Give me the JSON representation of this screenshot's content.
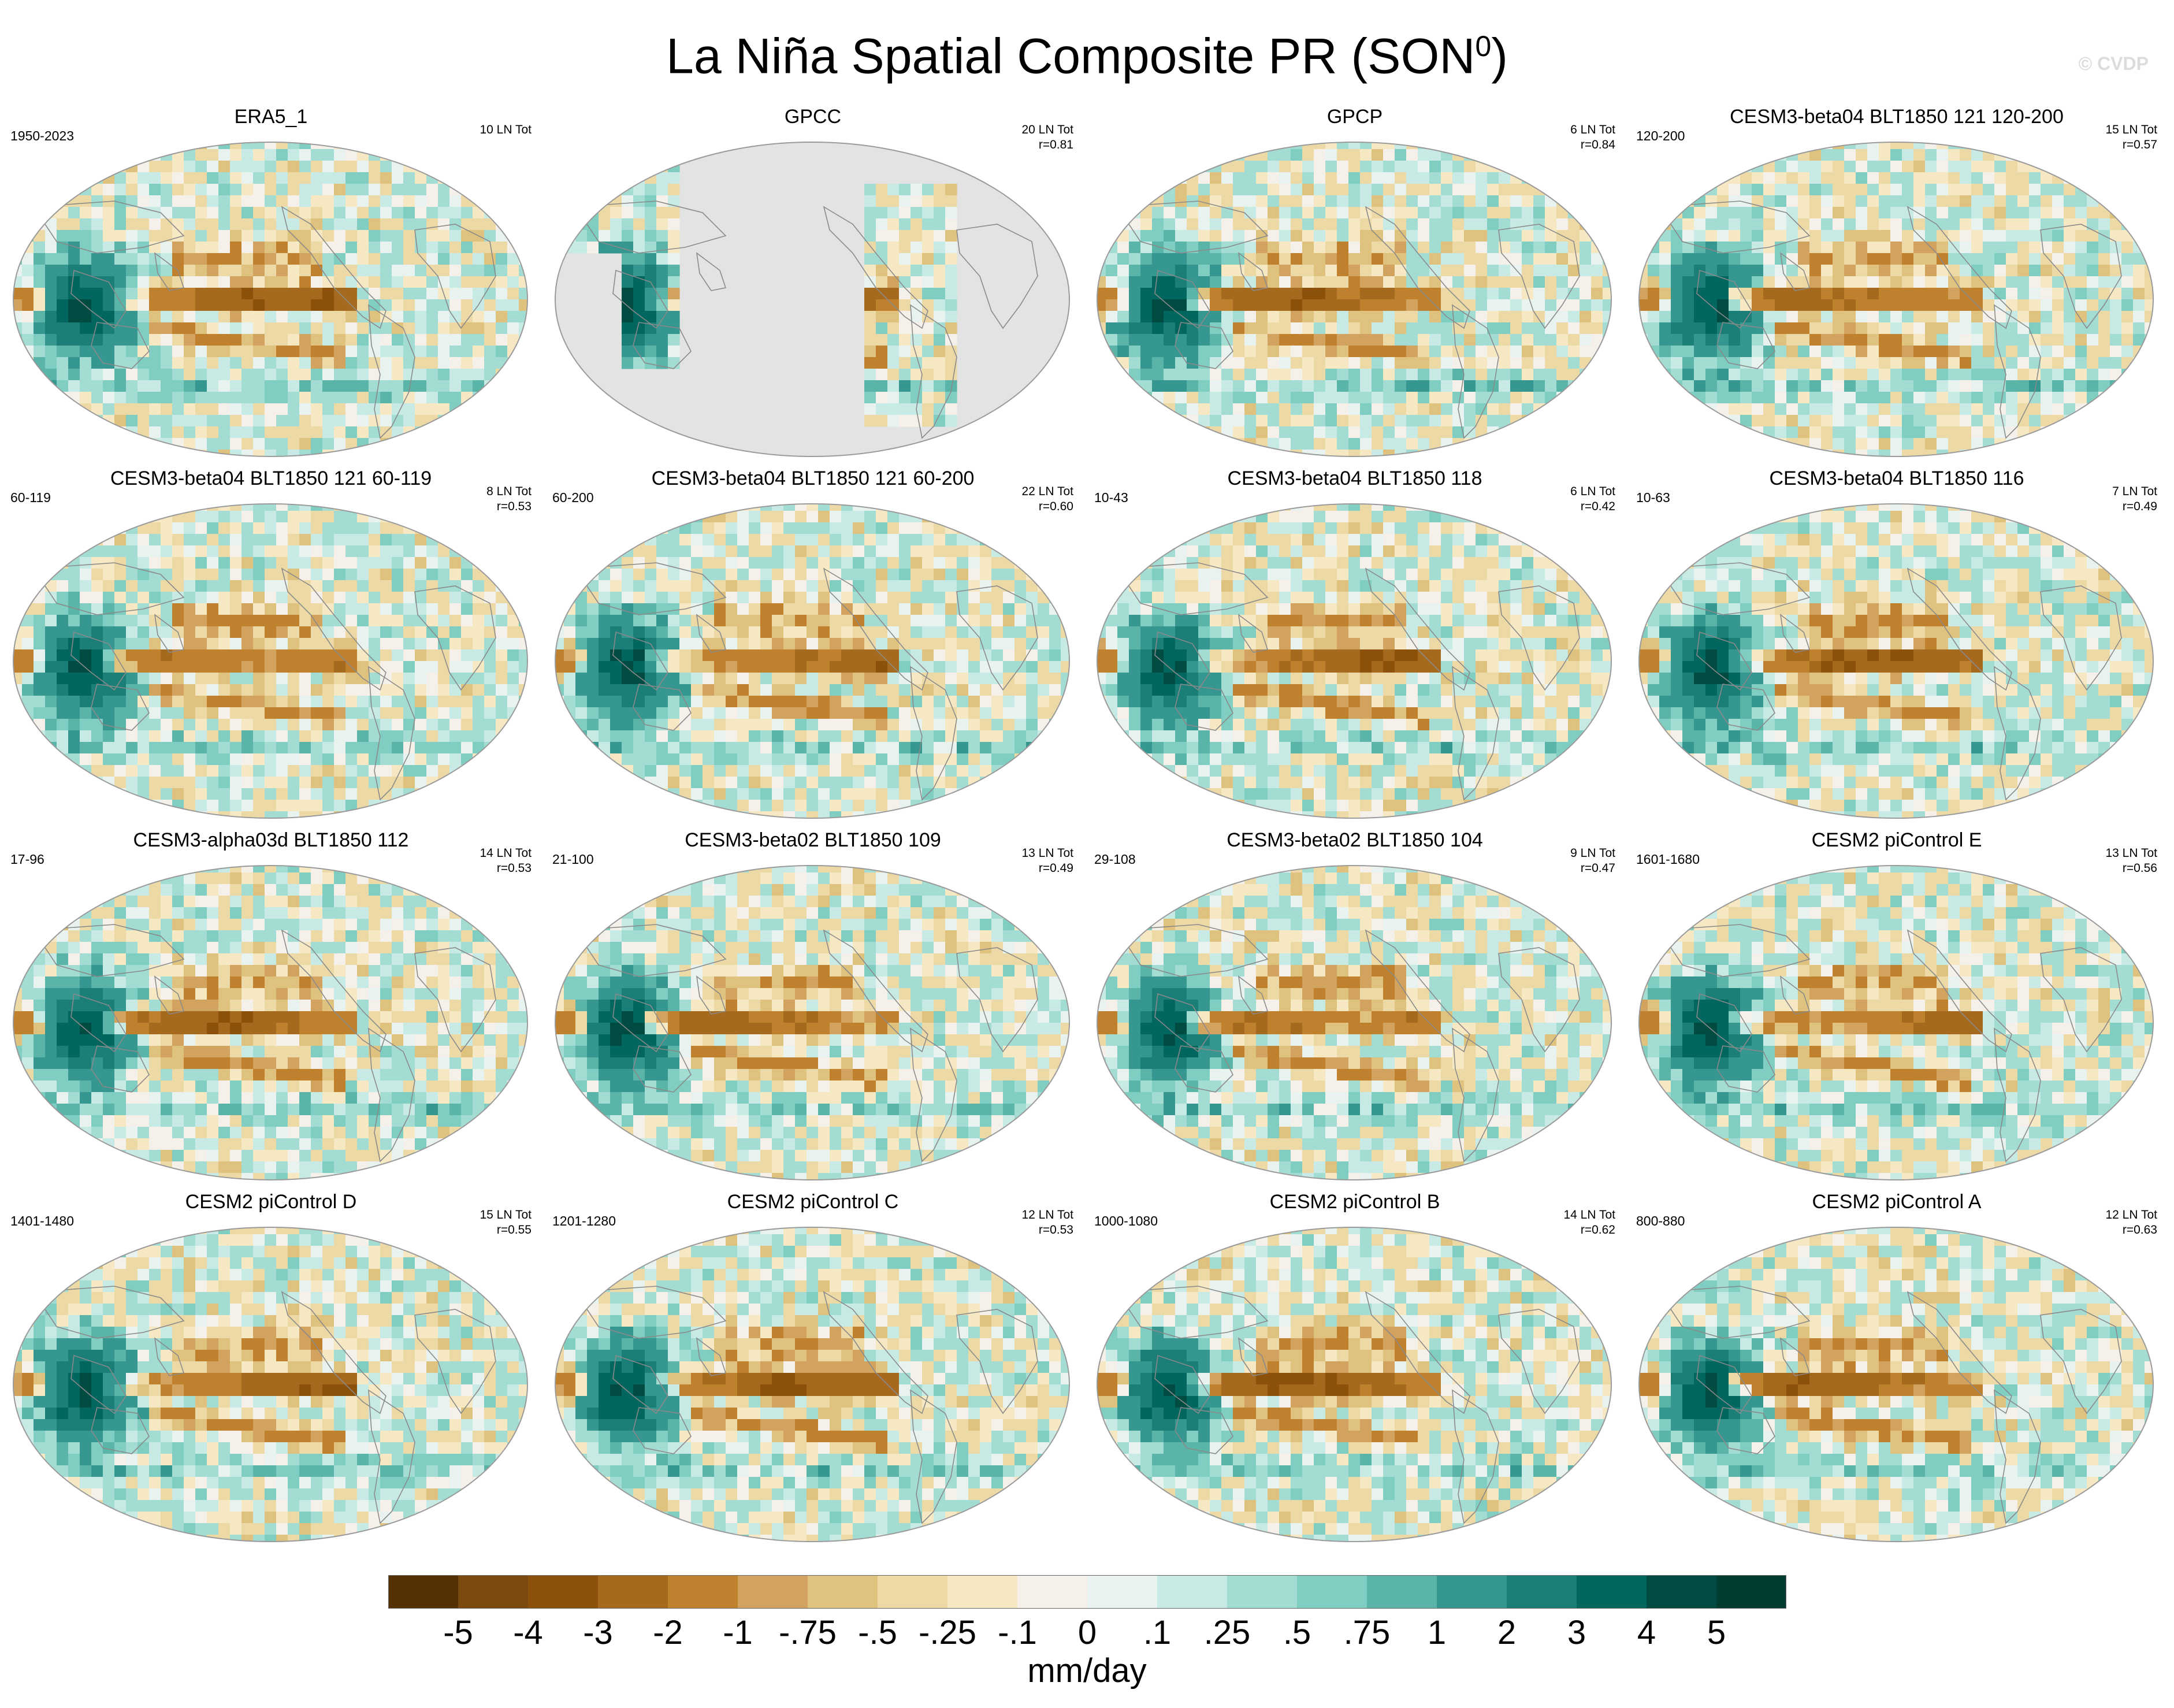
{
  "chart_data": {
    "type": "heatmap",
    "title": "La Niña Spatial Composite PR (SON",
    "title_superscript": "0",
    "title_suffix": ")",
    "watermark": "© CVDP",
    "units": "mm/day",
    "colorbar": {
      "labels": [
        "-5",
        "-4",
        "-3",
        "-2",
        "-1",
        "-.75",
        "-.5",
        "-.25",
        "-.1",
        "0",
        ".1",
        ".25",
        ".5",
        ".75",
        "1",
        "2",
        "3",
        "4",
        "5"
      ],
      "colors": [
        "#543005",
        "#7a4a0e",
        "#8c510a",
        "#a66a1f",
        "#bf812d",
        "#d2a35e",
        "#dfc27d",
        "#ecd9a6",
        "#f6e8c3",
        "#f5f1ea",
        "#e8f2ef",
        "#c7eae5",
        "#a3dcd2",
        "#80cdc1",
        "#5ab4a8",
        "#35978f",
        "#1b7f77",
        "#01665e",
        "#004c42",
        "#003c30"
      ]
    },
    "panels": [
      {
        "title": "ERA5_1",
        "years": "1950-2023",
        "ln_tot": "10 LN Tot",
        "r": "",
        "masked": false,
        "seed": 1
      },
      {
        "title": "GPCC",
        "years": "",
        "ln_tot": "20 LN Tot",
        "r": "r=0.81",
        "masked": true,
        "seed": 2
      },
      {
        "title": "GPCP",
        "years": "",
        "ln_tot": "6 LN Tot",
        "r": "r=0.84",
        "masked": false,
        "seed": 3
      },
      {
        "title": "CESM3-beta04 BLT1850 121 120-200",
        "years": "120-200",
        "ln_tot": "15 LN Tot",
        "r": "r=0.57",
        "masked": false,
        "seed": 4
      },
      {
        "title": "CESM3-beta04 BLT1850 121 60-119",
        "years": "60-119",
        "ln_tot": "8 LN Tot",
        "r": "r=0.53",
        "masked": false,
        "seed": 5
      },
      {
        "title": "CESM3-beta04 BLT1850 121 60-200",
        "years": "60-200",
        "ln_tot": "22 LN Tot",
        "r": "r=0.60",
        "masked": false,
        "seed": 6
      },
      {
        "title": "CESM3-beta04 BLT1850 118",
        "years": "10-43",
        "ln_tot": "6 LN Tot",
        "r": "r=0.42",
        "masked": false,
        "seed": 7
      },
      {
        "title": "CESM3-beta04 BLT1850 116",
        "years": "10-63",
        "ln_tot": "7 LN Tot",
        "r": "r=0.49",
        "masked": false,
        "seed": 8
      },
      {
        "title": "CESM3-alpha03d BLT1850 112",
        "years": "17-96",
        "ln_tot": "14 LN Tot",
        "r": "r=0.53",
        "masked": false,
        "seed": 9
      },
      {
        "title": "CESM3-beta02 BLT1850 109",
        "years": "21-100",
        "ln_tot": "13 LN Tot",
        "r": "r=0.49",
        "masked": false,
        "seed": 10
      },
      {
        "title": "CESM3-beta02 BLT1850 104",
        "years": "29-108",
        "ln_tot": "9 LN Tot",
        "r": "r=0.47",
        "masked": false,
        "seed": 11
      },
      {
        "title": "CESM2 piControl E",
        "years": "1601-1680",
        "ln_tot": "13 LN Tot",
        "r": "r=0.56",
        "masked": false,
        "seed": 12
      },
      {
        "title": "CESM2 piControl D",
        "years": "1401-1480",
        "ln_tot": "15 LN Tot",
        "r": "r=0.55",
        "masked": false,
        "seed": 13
      },
      {
        "title": "CESM2 piControl C",
        "years": "1201-1280",
        "ln_tot": "12 LN Tot",
        "r": "r=0.53",
        "masked": false,
        "seed": 14
      },
      {
        "title": "CESM2 piControl B",
        "years": "1000-1080",
        "ln_tot": "14 LN Tot",
        "r": "r=0.62",
        "masked": false,
        "seed": 15
      },
      {
        "title": "CESM2 piControl A",
        "years": "800-880",
        "ln_tot": "12 LN Tot",
        "r": "r=0.63",
        "masked": false,
        "seed": 16
      }
    ]
  }
}
